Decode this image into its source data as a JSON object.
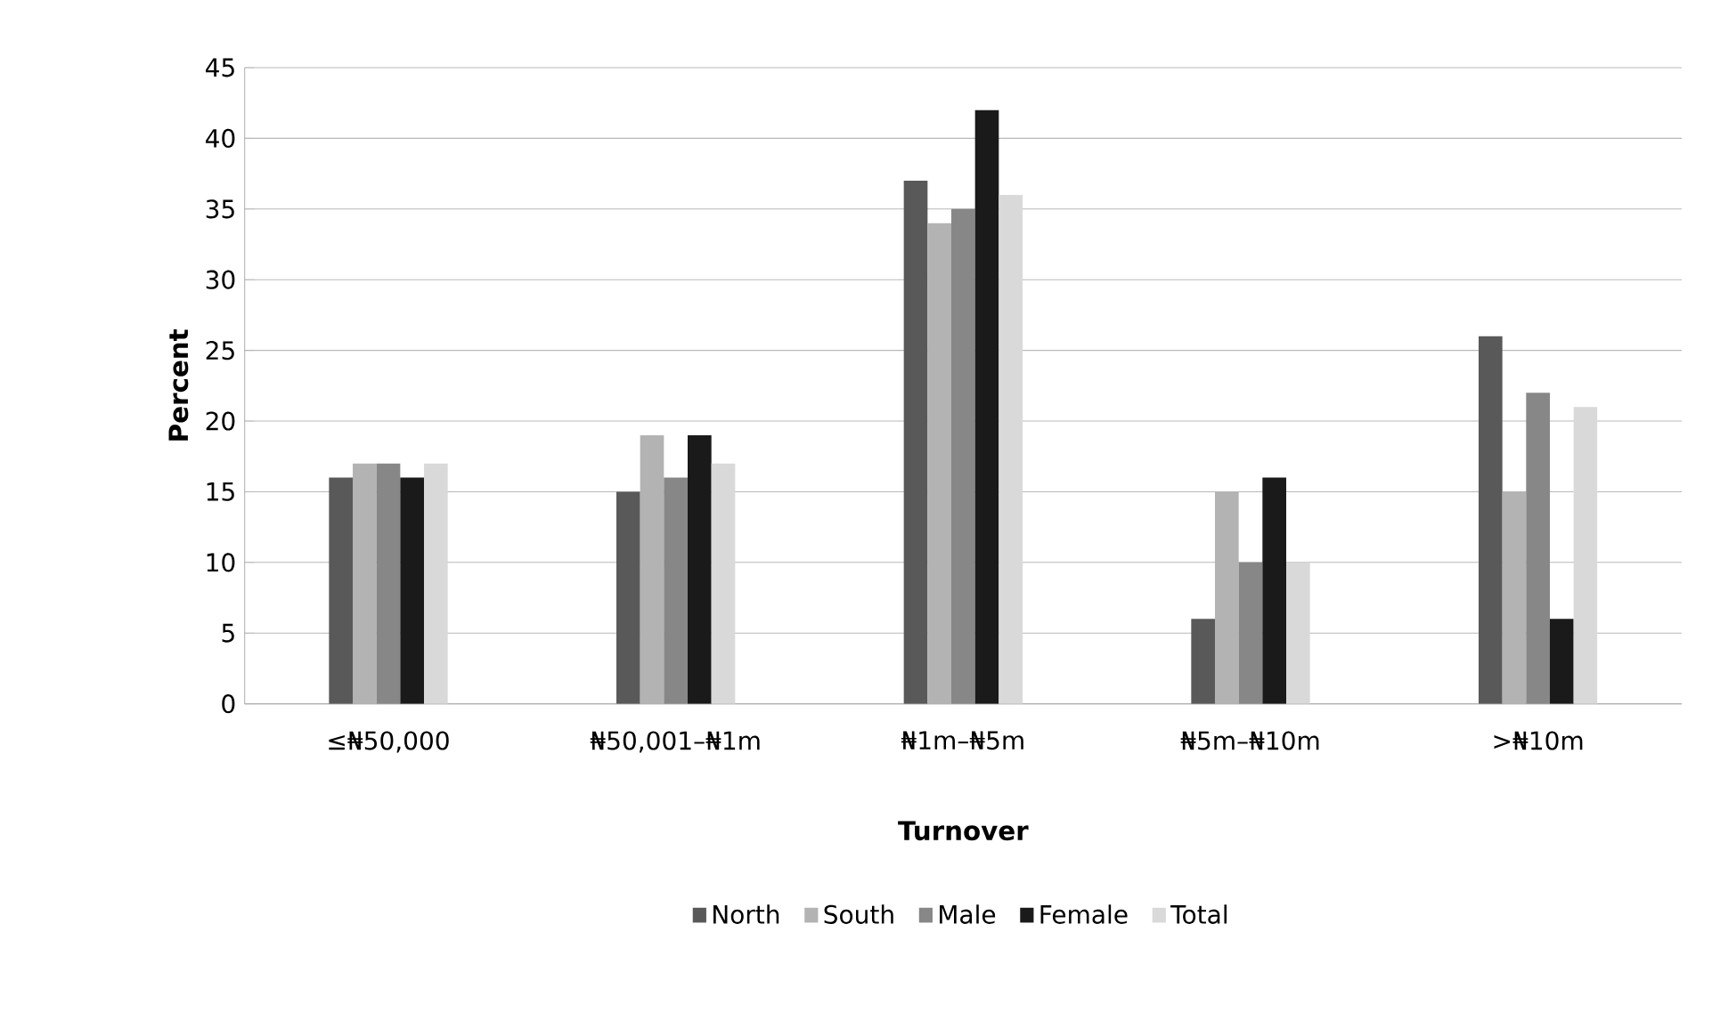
{
  "chart_data": {
    "type": "bar",
    "xlabel": "Turnover",
    "ylabel": "Percent",
    "categories": [
      "≤₦50,000",
      "₦50,001–₦1m",
      "₦1m–₦5m",
      "₦5m–₦10m",
      ">₦10m"
    ],
    "series": [
      {
        "name": "North",
        "color": "#595959",
        "values": [
          16,
          15,
          37,
          6,
          26
        ]
      },
      {
        "name": "South",
        "color": "#b3b3b3",
        "values": [
          17,
          19,
          34,
          15,
          15
        ]
      },
      {
        "name": "Male",
        "color": "#878787",
        "values": [
          17,
          16,
          35,
          10,
          22
        ]
      },
      {
        "name": "Female",
        "color": "#1a1a1a",
        "values": [
          16,
          19,
          42,
          16,
          6
        ]
      },
      {
        "name": "Total",
        "color": "#d9d9d9",
        "values": [
          17,
          17,
          36,
          10,
          21
        ]
      }
    ],
    "ylim": [
      0,
      45
    ],
    "yticks": [
      0,
      5,
      10,
      15,
      20,
      25,
      30,
      35,
      40,
      45
    ],
    "grid": "y",
    "legend": "bottom"
  }
}
